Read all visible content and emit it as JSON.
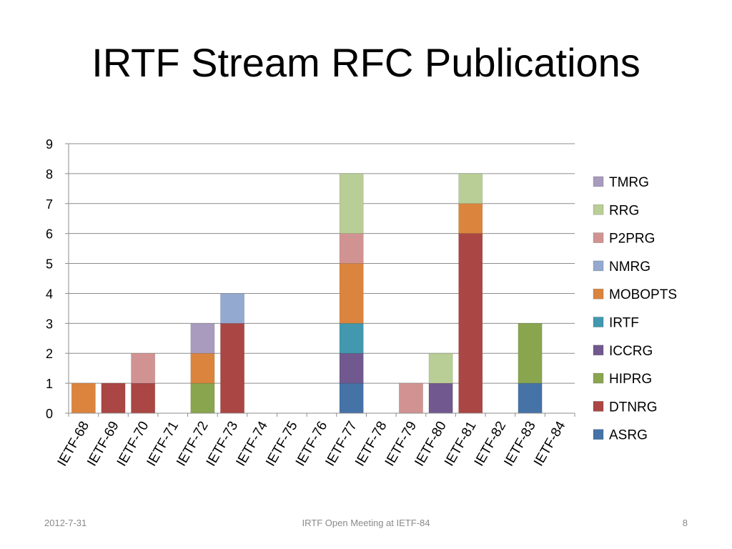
{
  "slide": {
    "title": "IRTF Stream RFC Publications",
    "footer_date": "2012-7-31",
    "footer_center": "IRTF Open Meeting at IETF-84",
    "page_number": "8"
  },
  "chart_data": {
    "type": "bar",
    "stacked": true,
    "title": "",
    "xlabel": "",
    "ylabel": "",
    "ylim": [
      0,
      9
    ],
    "yticks": [
      0,
      1,
      2,
      3,
      4,
      5,
      6,
      7,
      8,
      9
    ],
    "grid": true,
    "legend_position": "right",
    "categories": [
      "IETF-68",
      "IETF-69",
      "IETF-70",
      "IETF-71",
      "IETF-72",
      "IETF-73",
      "IETF-74",
      "IETF-75",
      "IETF-76",
      "IETF-77",
      "IETF-78",
      "IETF-79",
      "IETF-80",
      "IETF-81",
      "IETF-82",
      "IETF-83",
      "IETF-84"
    ],
    "series": [
      {
        "name": "ASRG",
        "color": "#4572a7",
        "values": [
          0,
          0,
          0,
          0,
          0,
          0,
          0,
          0,
          0,
          1,
          0,
          0,
          0,
          0,
          0,
          1,
          0
        ]
      },
      {
        "name": "DTNRG",
        "color": "#aa4643",
        "values": [
          0,
          1,
          1,
          0,
          0,
          3,
          0,
          0,
          0,
          0,
          0,
          0,
          0,
          6,
          0,
          0,
          0
        ]
      },
      {
        "name": "HIPRG",
        "color": "#89a54e",
        "values": [
          0,
          0,
          0,
          0,
          1,
          0,
          0,
          0,
          0,
          0,
          0,
          0,
          0,
          0,
          0,
          2,
          0
        ]
      },
      {
        "name": "ICCRG",
        "color": "#71588f",
        "values": [
          0,
          0,
          0,
          0,
          0,
          0,
          0,
          0,
          0,
          1,
          0,
          0,
          1,
          0,
          0,
          0,
          0
        ]
      },
      {
        "name": "IRTF",
        "color": "#4198af",
        "values": [
          0,
          0,
          0,
          0,
          0,
          0,
          0,
          0,
          0,
          1,
          0,
          0,
          0,
          0,
          0,
          0,
          0
        ]
      },
      {
        "name": "MOBOPTS",
        "color": "#db843d",
        "values": [
          1,
          0,
          0,
          0,
          1,
          0,
          0,
          0,
          0,
          2,
          0,
          0,
          0,
          1,
          0,
          0,
          0
        ]
      },
      {
        "name": "NMRG",
        "color": "#93a9cf",
        "values": [
          0,
          0,
          0,
          0,
          0,
          1,
          0,
          0,
          0,
          0,
          0,
          0,
          0,
          0,
          0,
          0,
          0
        ]
      },
      {
        "name": "P2PRG",
        "color": "#d19392",
        "values": [
          0,
          0,
          1,
          0,
          0,
          0,
          0,
          0,
          0,
          1,
          0,
          1,
          0,
          0,
          0,
          0,
          0
        ]
      },
      {
        "name": "RRG",
        "color": "#b9cd96",
        "values": [
          0,
          0,
          0,
          0,
          0,
          0,
          0,
          0,
          0,
          2,
          0,
          0,
          1,
          1,
          0,
          0,
          0
        ]
      },
      {
        "name": "TMRG",
        "color": "#a99bbd",
        "values": [
          0,
          0,
          0,
          0,
          1,
          0,
          0,
          0,
          0,
          0,
          0,
          0,
          0,
          0,
          0,
          0,
          0
        ]
      }
    ]
  }
}
